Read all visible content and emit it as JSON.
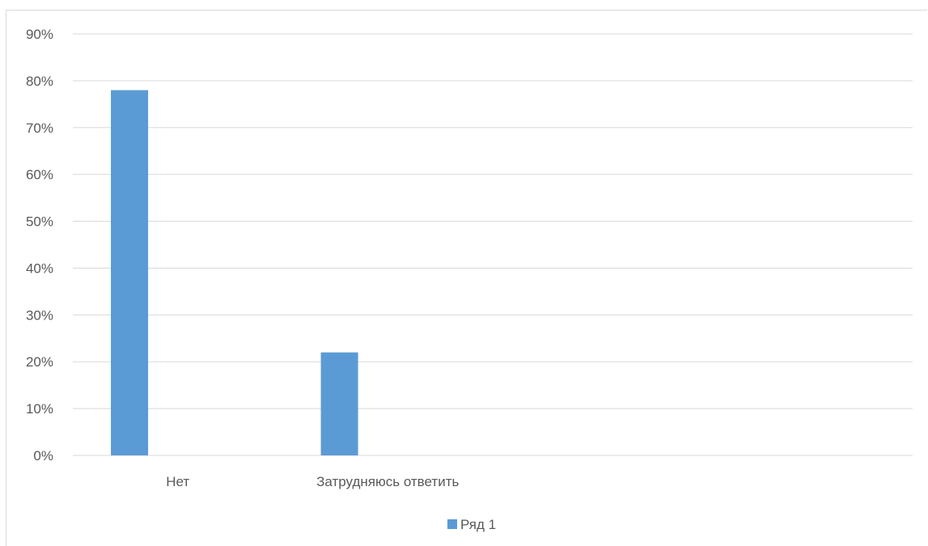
{
  "chart_data": {
    "type": "bar",
    "categories": [
      "Нет",
      "Затрудняюсь ответить",
      "",
      ""
    ],
    "series": [
      {
        "name": "Ряд 1",
        "values": [
          78,
          22,
          null,
          null
        ],
        "color": "#5b9bd5"
      }
    ],
    "title": "",
    "xlabel": "",
    "ylabel": "",
    "ylim": [
      0,
      90
    ],
    "yticks": [
      0,
      10,
      20,
      30,
      40,
      50,
      60,
      70,
      80,
      90
    ],
    "ytick_suffix": "%",
    "grid": true,
    "gridline_color": "#d9d9d9",
    "legend": "bottom",
    "legend_entries": [
      "Ряд 1"
    ]
  }
}
